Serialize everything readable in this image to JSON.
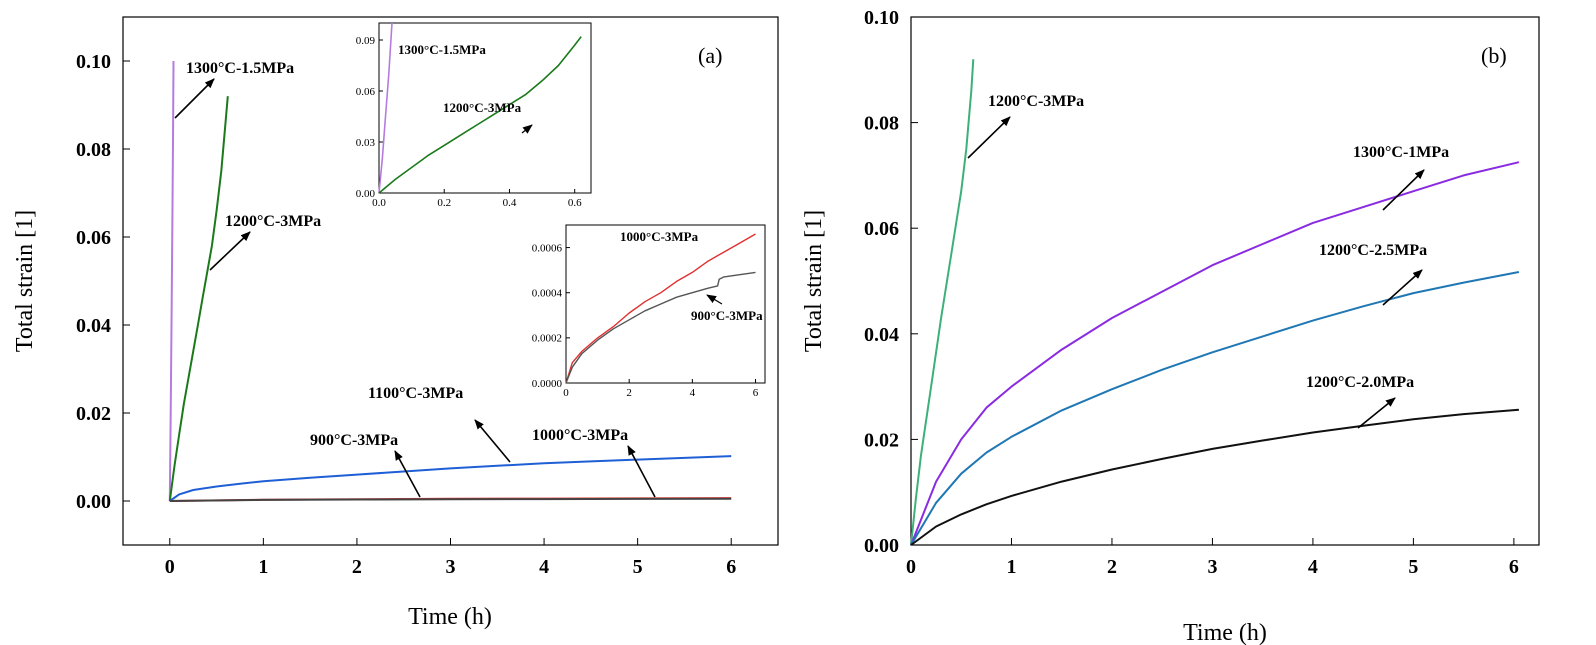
{
  "chart_data": [
    {
      "panel_label": "(a)",
      "type": "line",
      "xlabel": "Time (h)",
      "ylabel": "Total strain [1]",
      "xlim": [
        -0.5,
        6.5
      ],
      "ylim": [
        -0.01,
        0.11
      ],
      "xticks": [
        0,
        1,
        2,
        3,
        4,
        5,
        6
      ],
      "yticks": [
        0.0,
        0.02,
        0.04,
        0.06,
        0.08,
        0.1
      ],
      "xtick_labels": [
        "0",
        "1",
        "2",
        "3",
        "4",
        "5",
        "6"
      ],
      "ytick_labels": [
        "0.00",
        "0.02",
        "0.04",
        "0.06",
        "0.08",
        "0.10"
      ],
      "series": [
        {
          "name": "1300°C-1.5MPa",
          "color": "#b57ce0",
          "x": [
            0,
            0.01,
            0.02,
            0.03,
            0.035,
            0.04
          ],
          "y": [
            0,
            0.02,
            0.045,
            0.07,
            0.085,
            0.1
          ]
        },
        {
          "name": "1200°C-3MPa",
          "color": "#1a7a1a",
          "x": [
            0,
            0.05,
            0.1,
            0.15,
            0.2,
            0.25,
            0.3,
            0.35,
            0.4,
            0.45,
            0.5,
            0.55,
            0.6,
            0.62
          ],
          "y": [
            0,
            0.008,
            0.015,
            0.022,
            0.028,
            0.034,
            0.04,
            0.046,
            0.052,
            0.058,
            0.066,
            0.075,
            0.087,
            0.092
          ]
        },
        {
          "name": "1100°C-3MPa",
          "color": "#1f5fd6",
          "x": [
            0,
            0.1,
            0.25,
            0.5,
            0.75,
            1,
            1.5,
            2,
            2.5,
            3,
            3.5,
            4,
            4.5,
            5,
            5.5,
            6
          ],
          "y": [
            0,
            0.0015,
            0.0025,
            0.0033,
            0.0039,
            0.0045,
            0.0053,
            0.006,
            0.0067,
            0.0074,
            0.008,
            0.0086,
            0.009,
            0.0094,
            0.0098,
            0.0102
          ]
        },
        {
          "name": "1000°C-3MPa",
          "color": "#e03030",
          "x": [
            0,
            1,
            2,
            3,
            4,
            5,
            6
          ],
          "y": [
            0,
            0.0003,
            0.0004,
            0.0005,
            0.00055,
            0.0006,
            0.00067
          ]
        },
        {
          "name": "900°C-3MPa",
          "color": "#444444",
          "x": [
            0,
            1,
            2,
            3,
            4,
            5,
            6
          ],
          "y": [
            0,
            0.00025,
            0.00033,
            0.00039,
            0.00043,
            0.00047,
            0.0005
          ]
        }
      ],
      "annotations": [
        "1300°C-1.5MPa",
        "1200°C-3MPa",
        "1100°C-3MPa",
        "900°C-3MPa",
        "1000°C-3MPa"
      ],
      "insets": [
        {
          "type": "line",
          "xlim": [
            0,
            0.65
          ],
          "ylim": [
            0,
            0.1
          ],
          "xtick_labels": [
            "0.0",
            "0.2",
            "0.4",
            "0.6"
          ],
          "ytick_labels": [
            "0.00",
            "0.03",
            "0.06",
            "0.09"
          ],
          "xticks": [
            0,
            0.2,
            0.4,
            0.6
          ],
          "yticks": [
            0,
            0.03,
            0.06,
            0.09
          ],
          "annotations": [
            "1300°C-1.5MPa",
            "1200°C-3MPa"
          ],
          "series": [
            {
              "name": "1300°C-1.5MPa",
              "color": "#b57ce0",
              "x": [
                0,
                0.01,
                0.02,
                0.03,
                0.035,
                0.04
              ],
              "y": [
                0,
                0.02,
                0.045,
                0.07,
                0.085,
                0.1
              ]
            },
            {
              "name": "1200°C-3MPa",
              "color": "#1a7a1a",
              "x": [
                0,
                0.05,
                0.1,
                0.15,
                0.2,
                0.25,
                0.3,
                0.35,
                0.4,
                0.45,
                0.5,
                0.55,
                0.6,
                0.62
              ],
              "y": [
                0,
                0.008,
                0.015,
                0.022,
                0.028,
                0.034,
                0.04,
                0.046,
                0.052,
                0.058,
                0.066,
                0.075,
                0.087,
                0.092
              ]
            }
          ]
        },
        {
          "type": "line",
          "xlim": [
            0,
            6.3
          ],
          "ylim": [
            0,
            0.0007
          ],
          "xtick_labels": [
            "0",
            "2",
            "4",
            "6"
          ],
          "ytick_labels": [
            "0.0000",
            "0.0002",
            "0.0004",
            "0.0006"
          ],
          "xticks": [
            0,
            2,
            4,
            6
          ],
          "yticks": [
            0,
            0.0002,
            0.0004,
            0.0006
          ],
          "annotations": [
            "1000°C-3MPa",
            "900°C-3MPa"
          ],
          "series": [
            {
              "name": "1000°C-3MPa",
              "color": "#e03030",
              "x": [
                0,
                0.2,
                0.5,
                1,
                1.5,
                2,
                2.5,
                3,
                3.5,
                4,
                4.5,
                5,
                5.5,
                6
              ],
              "y": [
                0,
                9e-05,
                0.00014,
                0.0002,
                0.00025,
                0.00031,
                0.00036,
                0.0004,
                0.00045,
                0.00049,
                0.00054,
                0.00058,
                0.00062,
                0.00066
              ]
            },
            {
              "name": "900°C-3MPa",
              "color": "#555555",
              "x": [
                0,
                0.2,
                0.5,
                1,
                1.5,
                2,
                2.5,
                3,
                3.5,
                4,
                4.5,
                4.8,
                4.85,
                5,
                5.5,
                6
              ],
              "y": [
                0,
                7e-05,
                0.00013,
                0.00019,
                0.00024,
                0.00028,
                0.00032,
                0.00035,
                0.00038,
                0.0004,
                0.00042,
                0.00043,
                0.00046,
                0.00047,
                0.00048,
                0.00049
              ]
            }
          ]
        }
      ]
    },
    {
      "panel_label": "(b)",
      "type": "line",
      "xlabel": "Time (h)",
      "ylabel": "Total strain [1]",
      "xlim": [
        0,
        6.25
      ],
      "ylim": [
        0,
        0.1
      ],
      "xticks": [
        0,
        1,
        2,
        3,
        4,
        5,
        6
      ],
      "yticks": [
        0.0,
        0.02,
        0.04,
        0.06,
        0.08,
        0.1
      ],
      "xtick_labels": [
        "0",
        "1",
        "2",
        "3",
        "4",
        "5",
        "6"
      ],
      "ytick_labels": [
        "0.00",
        "0.02",
        "0.04",
        "0.06",
        "0.08",
        "0.10"
      ],
      "series": [
        {
          "name": "1200°C-3MPa",
          "color": "#3db07a",
          "x": [
            0,
            0.05,
            0.1,
            0.2,
            0.3,
            0.4,
            0.5,
            0.55,
            0.6,
            0.62
          ],
          "y": [
            0,
            0.009,
            0.017,
            0.03,
            0.043,
            0.055,
            0.067,
            0.075,
            0.086,
            0.092
          ]
        },
        {
          "name": "1300°C-1MPa",
          "color": "#8a2be2",
          "x": [
            0,
            0.25,
            0.5,
            0.75,
            1,
            1.5,
            2,
            2.5,
            3,
            3.5,
            4,
            4.5,
            5,
            5.5,
            6.05
          ],
          "y": [
            0,
            0.012,
            0.02,
            0.026,
            0.03,
            0.037,
            0.043,
            0.048,
            0.053,
            0.057,
            0.061,
            0.064,
            0.067,
            0.07,
            0.0725
          ]
        },
        {
          "name": "1200°C-2.5MPa",
          "color": "#1f77b4",
          "x": [
            0,
            0.25,
            0.5,
            0.75,
            1,
            1.5,
            2,
            2.5,
            3,
            3.5,
            4,
            4.5,
            5,
            5.5,
            6.05
          ],
          "y": [
            0,
            0.008,
            0.0135,
            0.0175,
            0.0205,
            0.0255,
            0.0295,
            0.0332,
            0.0365,
            0.0395,
            0.0425,
            0.0452,
            0.0477,
            0.0497,
            0.0517
          ]
        },
        {
          "name": "1200°C-2.0MPa",
          "color": "#111111",
          "x": [
            0,
            0.25,
            0.5,
            0.75,
            1,
            1.5,
            2,
            2.5,
            3,
            3.5,
            4,
            4.5,
            5,
            5.5,
            6.05
          ],
          "y": [
            0,
            0.0035,
            0.0058,
            0.0077,
            0.0093,
            0.012,
            0.0143,
            0.0163,
            0.0182,
            0.0198,
            0.0213,
            0.0226,
            0.0238,
            0.0248,
            0.0256
          ]
        }
      ],
      "annotations": [
        "1200°C-3MPa",
        "1300°C-1MPa",
        "1200°C-2.5MPa",
        "1200°C-2.0MPa"
      ]
    }
  ]
}
